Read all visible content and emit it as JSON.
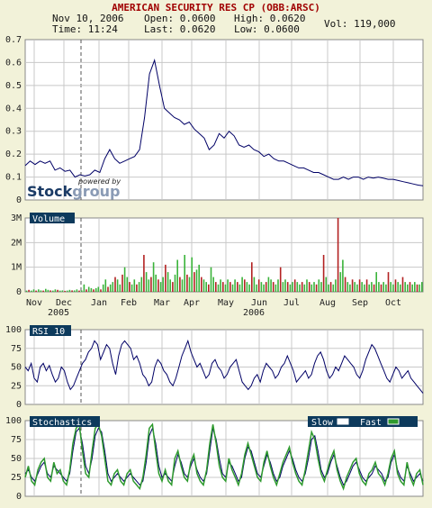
{
  "header": {
    "title": "AMERICAN SECURITY RES CP (OBB:ARSC)",
    "date": "Nov 10, 2006",
    "time": "Time: 11:24",
    "open": "Open: 0.0600",
    "last": "Last: 0.0620",
    "high": "High: 0.0620",
    "low": "Low: 0.0600",
    "vol": "Vol: 119,000"
  },
  "logo": {
    "powered_by": "powered by",
    "brand_a": "Stock",
    "brand_b": "group"
  },
  "colors": {
    "panel_bg": "#ffffff",
    "grid": "#c8c8c8",
    "price_line": "#000066",
    "vol_green": "#3ab33a",
    "vol_red": "#b32222",
    "label_bg": "#0d3a5c",
    "fast": "#2e9a2e",
    "slow": "#000066",
    "page_bg": "#f2f2d9"
  },
  "chart_data": [
    {
      "type": "line",
      "name": "price",
      "ylim": [
        0,
        0.7
      ],
      "yticks": [
        "0",
        "0.1",
        "0.2",
        "0.3",
        "0.4",
        "0.5",
        "0.6",
        "0.7"
      ],
      "points": [
        [
          0,
          0.15
        ],
        [
          2,
          0.17
        ],
        [
          4,
          0.155
        ],
        [
          6,
          0.17
        ],
        [
          8,
          0.16
        ],
        [
          10,
          0.17
        ],
        [
          12,
          0.13
        ],
        [
          14,
          0.14
        ],
        [
          16,
          0.125
        ],
        [
          18,
          0.13
        ],
        [
          20,
          0.1
        ],
        [
          22,
          0.11
        ],
        [
          24,
          0.105
        ],
        [
          26,
          0.11
        ],
        [
          28,
          0.13
        ],
        [
          30,
          0.12
        ],
        [
          32,
          0.18
        ],
        [
          34,
          0.22
        ],
        [
          36,
          0.18
        ],
        [
          38,
          0.16
        ],
        [
          40,
          0.17
        ],
        [
          42,
          0.18
        ],
        [
          44,
          0.19
        ],
        [
          46,
          0.22
        ],
        [
          48,
          0.36
        ],
        [
          50,
          0.55
        ],
        [
          52,
          0.61
        ],
        [
          54,
          0.5
        ],
        [
          56,
          0.4
        ],
        [
          58,
          0.38
        ],
        [
          60,
          0.36
        ],
        [
          62,
          0.35
        ],
        [
          64,
          0.33
        ],
        [
          66,
          0.34
        ],
        [
          68,
          0.31
        ],
        [
          70,
          0.29
        ],
        [
          72,
          0.27
        ],
        [
          74,
          0.22
        ],
        [
          76,
          0.24
        ],
        [
          78,
          0.29
        ],
        [
          80,
          0.27
        ],
        [
          82,
          0.3
        ],
        [
          84,
          0.28
        ],
        [
          86,
          0.24
        ],
        [
          88,
          0.23
        ],
        [
          90,
          0.24
        ],
        [
          92,
          0.22
        ],
        [
          94,
          0.21
        ],
        [
          96,
          0.19
        ],
        [
          98,
          0.2
        ],
        [
          100,
          0.18
        ],
        [
          102,
          0.17
        ],
        [
          104,
          0.17
        ],
        [
          106,
          0.16
        ],
        [
          108,
          0.15
        ],
        [
          110,
          0.14
        ],
        [
          112,
          0.14
        ],
        [
          114,
          0.13
        ],
        [
          116,
          0.12
        ],
        [
          118,
          0.12
        ],
        [
          120,
          0.11
        ],
        [
          122,
          0.1
        ],
        [
          124,
          0.09
        ],
        [
          126,
          0.09
        ],
        [
          128,
          0.1
        ],
        [
          130,
          0.09
        ],
        [
          132,
          0.1
        ],
        [
          134,
          0.1
        ],
        [
          136,
          0.09
        ],
        [
          138,
          0.1
        ],
        [
          140,
          0.095
        ],
        [
          142,
          0.1
        ],
        [
          144,
          0.095
        ],
        [
          146,
          0.09
        ],
        [
          148,
          0.09
        ],
        [
          150,
          0.085
        ],
        [
          152,
          0.08
        ],
        [
          154,
          0.075
        ],
        [
          156,
          0.07
        ],
        [
          158,
          0.065
        ],
        [
          160,
          0.062
        ]
      ]
    },
    {
      "type": "bar",
      "name": "Volume",
      "ylim": [
        0,
        3000000
      ],
      "yticks": [
        "0",
        "1M",
        "2M",
        "3M"
      ],
      "values": [
        0.05,
        0.08,
        0.05,
        0.1,
        0.05,
        0.1,
        0.06,
        0.05,
        0.12,
        0.08,
        0.06,
        0.05,
        0.1,
        0.08,
        0.05,
        0.06,
        0.04,
        0.05,
        0.08,
        0.06,
        0.06,
        0.1,
        0.05,
        0.06,
        0.3,
        0.1,
        0.2,
        0.15,
        0.1,
        0.15,
        0.2,
        0.1,
        0.3,
        0.5,
        0.2,
        0.3,
        0.4,
        0.6,
        0.5,
        0.3,
        0.7,
        1.0,
        0.6,
        0.4,
        0.3,
        0.5,
        0.3,
        0.4,
        0.6,
        1.5,
        0.8,
        0.5,
        0.6,
        1.2,
        0.7,
        0.5,
        0.4,
        0.6,
        1.1,
        0.8,
        0.5,
        0.4,
        0.7,
        1.3,
        0.6,
        0.5,
        1.5,
        0.7,
        0.6,
        1.4,
        0.8,
        0.9,
        1.1,
        0.6,
        0.5,
        0.4,
        0.3,
        1.0,
        0.6,
        0.4,
        0.3,
        0.5,
        0.4,
        0.3,
        0.5,
        0.4,
        0.3,
        0.5,
        0.4,
        0.3,
        0.6,
        0.5,
        0.4,
        0.3,
        1.2,
        0.6,
        0.3,
        0.5,
        0.4,
        0.3,
        0.4,
        0.6,
        0.5,
        0.4,
        0.3,
        0.5,
        1.0,
        0.4,
        0.5,
        0.4,
        0.3,
        0.4,
        0.5,
        0.4,
        0.3,
        0.4,
        0.3,
        0.5,
        0.4,
        0.3,
        0.4,
        0.3,
        0.5,
        0.4,
        1.5,
        0.6,
        0.3,
        0.4,
        0.3,
        0.5,
        3.0,
        0.8,
        1.3,
        0.6,
        0.4,
        0.3,
        0.5,
        0.4,
        0.3,
        0.5,
        0.4,
        0.3,
        0.5,
        0.3,
        0.4,
        0.3,
        0.8,
        0.4,
        0.3,
        0.4,
        0.3,
        0.8,
        0.4,
        0.3,
        0.5,
        0.4,
        0.3,
        0.6,
        0.4,
        0.3,
        0.4,
        0.3,
        0.4,
        0.3,
        0.3,
        0.4
      ]
    },
    {
      "type": "line",
      "name": "RSI 10",
      "ylim": [
        0,
        100
      ],
      "yticks": [
        "0",
        "25",
        "50",
        "75",
        "100"
      ],
      "values": [
        50,
        45,
        55,
        35,
        30,
        50,
        55,
        45,
        52,
        40,
        30,
        35,
        50,
        45,
        30,
        20,
        25,
        35,
        45,
        55,
        60,
        70,
        75,
        85,
        80,
        60,
        70,
        80,
        75,
        55,
        40,
        65,
        80,
        85,
        80,
        75,
        60,
        65,
        55,
        40,
        35,
        25,
        30,
        50,
        60,
        55,
        45,
        40,
        30,
        25,
        35,
        50,
        65,
        75,
        85,
        70,
        60,
        50,
        55,
        45,
        35,
        40,
        55,
        60,
        50,
        45,
        35,
        40,
        50,
        55,
        60,
        45,
        30,
        25,
        20,
        25,
        35,
        40,
        30,
        45,
        55,
        50,
        45,
        35,
        40,
        50,
        55,
        65,
        55,
        45,
        30,
        35,
        40,
        45,
        35,
        40,
        55,
        65,
        70,
        60,
        45,
        35,
        40,
        50,
        45,
        55,
        65,
        60,
        55,
        50,
        40,
        35,
        45,
        60,
        70,
        80,
        75,
        65,
        55,
        45,
        35,
        30,
        40,
        50,
        45,
        35,
        40,
        45,
        35,
        30,
        25,
        20,
        15
      ]
    },
    {
      "type": "line",
      "name": "Stochastics",
      "ylim": [
        0,
        100
      ],
      "yticks": [
        "0",
        "25",
        "50",
        "75",
        "100"
      ],
      "series": [
        {
          "name": "Slow",
          "values": [
            30,
            35,
            25,
            20,
            30,
            40,
            45,
            30,
            25,
            40,
            35,
            30,
            25,
            20,
            30,
            60,
            85,
            90,
            70,
            40,
            30,
            50,
            80,
            90,
            85,
            60,
            30,
            20,
            25,
            30,
            25,
            20,
            25,
            30,
            25,
            20,
            15,
            20,
            45,
            80,
            90,
            70,
            40,
            25,
            30,
            25,
            20,
            40,
            55,
            45,
            30,
            25,
            40,
            50,
            35,
            25,
            20,
            30,
            60,
            90,
            75,
            50,
            30,
            25,
            45,
            40,
            30,
            20,
            25,
            50,
            65,
            60,
            45,
            30,
            25,
            40,
            55,
            45,
            30,
            20,
            25,
            40,
            50,
            60,
            50,
            35,
            25,
            20,
            30,
            50,
            75,
            80,
            60,
            35,
            25,
            30,
            45,
            55,
            40,
            25,
            15,
            20,
            30,
            40,
            45,
            35,
            25,
            20,
            25,
            30,
            40,
            35,
            30,
            20,
            25,
            45,
            55,
            35,
            25,
            20,
            40,
            30,
            20,
            25,
            30,
            20
          ]
        },
        {
          "name": "Fast",
          "values": [
            25,
            40,
            20,
            15,
            35,
            45,
            50,
            25,
            20,
            45,
            30,
            35,
            20,
            15,
            35,
            70,
            90,
            95,
            60,
            30,
            25,
            60,
            90,
            95,
            80,
            50,
            20,
            15,
            30,
            35,
            20,
            15,
            30,
            35,
            20,
            15,
            10,
            25,
            55,
            90,
            95,
            60,
            30,
            20,
            35,
            20,
            15,
            50,
            60,
            40,
            25,
            20,
            45,
            55,
            30,
            20,
            15,
            35,
            70,
            95,
            70,
            40,
            25,
            20,
            50,
            35,
            25,
            15,
            30,
            55,
            70,
            55,
            40,
            25,
            20,
            45,
            60,
            40,
            25,
            15,
            30,
            45,
            55,
            65,
            45,
            30,
            20,
            15,
            35,
            60,
            85,
            75,
            50,
            30,
            20,
            35,
            50,
            60,
            35,
            20,
            10,
            25,
            35,
            45,
            50,
            30,
            20,
            15,
            30,
            35,
            45,
            30,
            25,
            15,
            30,
            50,
            60,
            30,
            20,
            15,
            45,
            25,
            15,
            30,
            35,
            15
          ]
        }
      ]
    }
  ],
  "axis": {
    "months": [
      "Nov",
      "Dec",
      "Jan",
      "Feb",
      "Mar",
      "Apr",
      "May",
      "Jun",
      "Jul",
      "Aug",
      "Sep",
      "Oct"
    ],
    "years": [
      "2005",
      "2006"
    ]
  },
  "panels": {
    "volume_label": "Volume",
    "rsi_label": "RSI 10",
    "stoch_label": "Stochastics",
    "legend_slow": "Slow",
    "legend_fast": "Fast"
  }
}
